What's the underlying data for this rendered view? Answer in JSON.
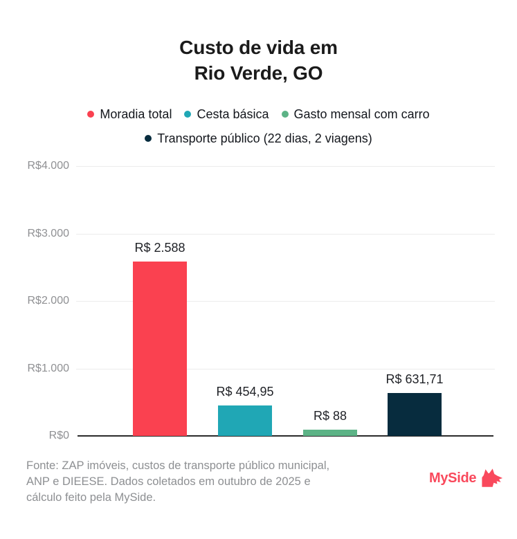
{
  "title": {
    "line1": "Custo de vida em",
    "line2": "Rio Verde, GO"
  },
  "legend": [
    {
      "label": "Moradia total",
      "color": "#fa4150"
    },
    {
      "label": "Cesta básica",
      "color": "#20a7b5"
    },
    {
      "label": "Gasto mensal com carro",
      "color": "#5cb386"
    },
    {
      "label": "Transporte público (22 dias, 2 viagens)",
      "color": "#072c3e"
    }
  ],
  "chart_data": {
    "type": "bar",
    "title": "Custo de vida em Rio Verde, GO",
    "categories": [
      "Moradia total",
      "Cesta básica",
      "Gasto mensal com carro",
      "Transporte público (22 dias, 2 viagens)"
    ],
    "values": [
      2588,
      454.95,
      88,
      631.71
    ],
    "bar_labels": [
      "R$ 2.588",
      "R$ 454,95",
      "R$ 88",
      "R$ 631,71"
    ],
    "bar_colors": [
      "#fa4150",
      "#20a7b5",
      "#5cb386",
      "#072c3e"
    ],
    "xlabel": "",
    "ylabel": "",
    "ylim": [
      0,
      4000
    ],
    "yticks": [
      0,
      1000,
      2000,
      3000,
      4000
    ],
    "ytick_labels": [
      "R$0",
      "R$1.000",
      "R$2.000",
      "R$3.000",
      "R$4.000"
    ],
    "grid": true,
    "legend_position": "top"
  },
  "footer": {
    "lines": [
      "Fonte: ZAP imóveis, custos de transporte público municipal,",
      "ANP e DIEESE. Dados coletados em outubro de 2025 e",
      "cálculo feito pela MySide."
    ],
    "logo_text": "MySide",
    "logo_color": "#f9495c"
  }
}
